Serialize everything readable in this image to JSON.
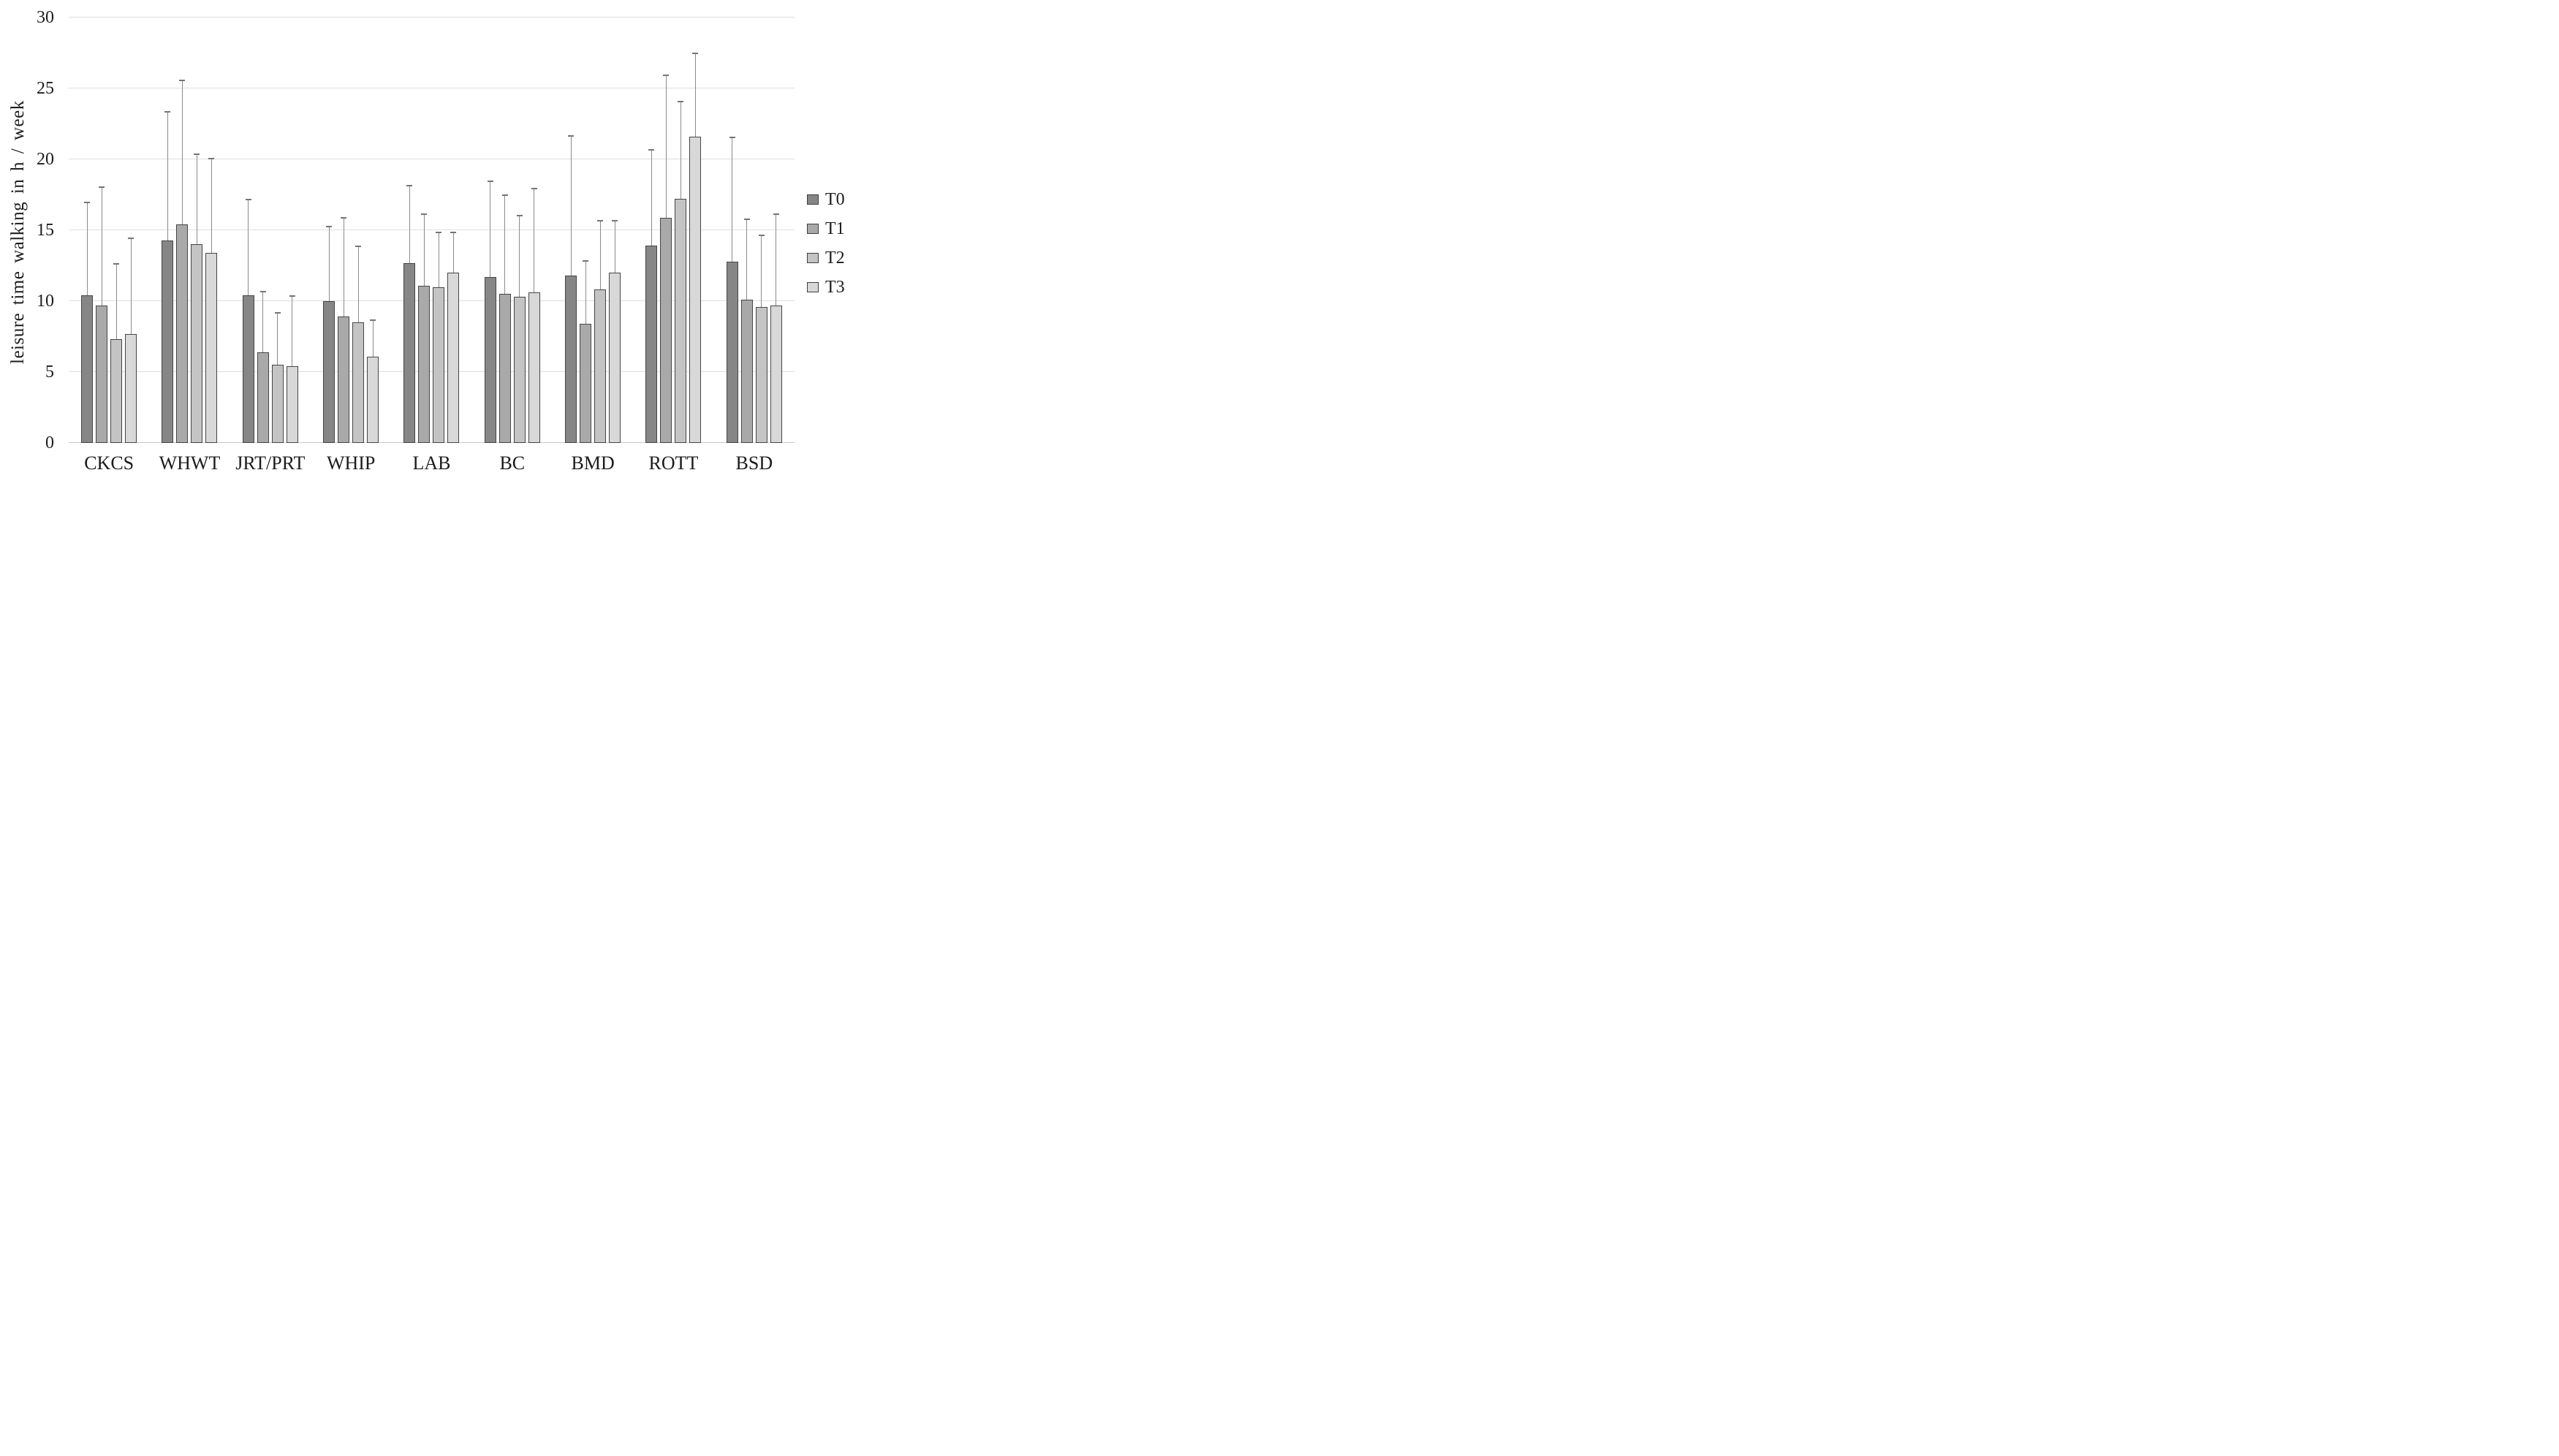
{
  "chart_data": {
    "type": "bar",
    "title": "",
    "xlabel": "",
    "ylabel": "leisure time walking in h / week",
    "ylim": [
      0,
      30
    ],
    "yticks": [
      0,
      5,
      10,
      15,
      20,
      25,
      30
    ],
    "grid": "horizontal",
    "legend_position": "right",
    "error_bars": "upper",
    "categories": [
      "CKCS",
      "WHWT",
      "JRT/PRT",
      "WHIP",
      "LAB",
      "BC",
      "BMD",
      "ROTT",
      "BSD"
    ],
    "series": [
      {
        "name": "T0",
        "color": "#868686",
        "values": [
          10.4,
          14.3,
          10.4,
          10.0,
          12.7,
          11.7,
          11.8,
          13.9,
          12.8
        ],
        "error_upper": [
          6.5,
          9.0,
          6.7,
          5.2,
          5.4,
          6.7,
          9.8,
          6.7,
          8.7
        ]
      },
      {
        "name": "T1",
        "color": "#a9a9a9",
        "values": [
          9.7,
          15.4,
          6.4,
          8.9,
          11.1,
          10.5,
          8.4,
          15.9,
          10.1
        ],
        "error_upper": [
          8.3,
          10.1,
          4.2,
          6.9,
          5.0,
          6.9,
          4.4,
          10.0,
          5.6
        ]
      },
      {
        "name": "T2",
        "color": "#c4c4c4",
        "values": [
          7.3,
          14.0,
          5.5,
          8.5,
          11.0,
          10.3,
          10.8,
          17.2,
          9.6
        ],
        "error_upper": [
          5.3,
          6.3,
          3.6,
          5.3,
          3.8,
          5.7,
          4.8,
          6.8,
          5.0
        ]
      },
      {
        "name": "T3",
        "color": "#d8d8d8",
        "values": [
          7.7,
          13.4,
          5.4,
          6.1,
          12.0,
          10.6,
          12.0,
          21.6,
          9.7
        ],
        "error_upper": [
          6.7,
          6.6,
          4.9,
          2.5,
          2.8,
          7.3,
          3.6,
          5.8,
          6.4
        ]
      }
    ],
    "colors": {
      "bar_border": "#454545",
      "error_bar_line": "#8b8b8b",
      "error_bar_cap": "#757575",
      "gridline": "#dedede",
      "axis_line": "#c9c9c9",
      "text": "#1c1c1c",
      "background": "#ffffff"
    }
  }
}
